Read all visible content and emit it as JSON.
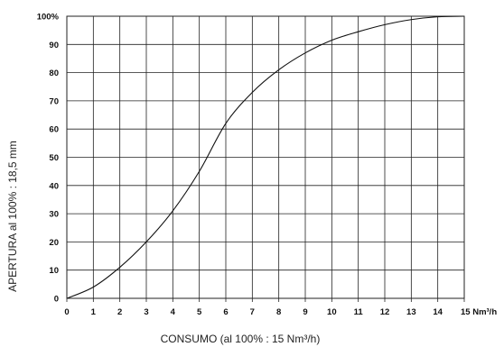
{
  "chart_data": {
    "type": "line",
    "title": "",
    "xlabel": "CONSUMO (al 100% : 15 Nm³/h)",
    "ylabel": "APERTURA al 100% : 18,5 mm",
    "xlim": [
      0,
      15
    ],
    "ylim": [
      0,
      100
    ],
    "x_ticks": [
      "0",
      "1",
      "2",
      "3",
      "4",
      "5",
      "6",
      "7",
      "8",
      "9",
      "10",
      "11",
      "12",
      "13",
      "14",
      "15 Nm³/h"
    ],
    "y_ticks": [
      "0",
      "10",
      "20",
      "30",
      "40",
      "50",
      "60",
      "70",
      "80",
      "90",
      "100%"
    ],
    "grid": true,
    "series": [
      {
        "x": [
          0,
          1,
          2,
          3,
          4,
          5,
          6,
          7,
          8,
          9,
          10,
          11,
          12,
          13,
          14,
          15
        ],
        "y": [
          0,
          4,
          11,
          20,
          31,
          45,
          62,
          73,
          81,
          87,
          91.5,
          94.5,
          97,
          98.8,
          99.8,
          100
        ]
      }
    ],
    "colors": {
      "line": "#111111",
      "grid": "#222222",
      "text": "#111111"
    }
  }
}
